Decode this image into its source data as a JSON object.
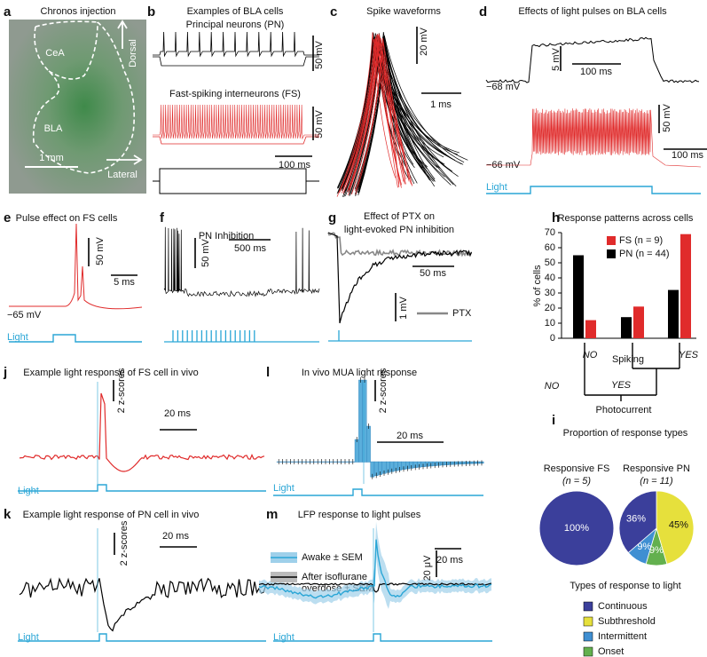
{
  "panels": {
    "a": {
      "label": "a",
      "title": "Chronos injection",
      "texts": [
        "CeA",
        "Dorsal",
        "BLA",
        "1 mm",
        "Lateral"
      ]
    },
    "b": {
      "label": "b",
      "title": "Examples of BLA cells",
      "texts": [
        "Principal neurons (PN)",
        "50 mV",
        "Fast-spiking interneurons (FS)",
        "50 mV",
        "100 ms"
      ]
    },
    "c": {
      "label": "c",
      "title": "Spike waveforms",
      "texts": [
        "20 mV",
        "1 ms"
      ]
    },
    "d": {
      "label": "d",
      "title": "Effects of light pulses on BLA cells",
      "texts": [
        "5 mV",
        "100 ms",
        "−68 mV",
        "50 mV",
        "100 ms",
        "−66 mV",
        "Light"
      ]
    },
    "e": {
      "label": "e",
      "title": "Pulse effect on FS cells",
      "texts": [
        "50 mV",
        "5 ms",
        "−65 mV",
        "Light"
      ]
    },
    "f": {
      "label": "f",
      "title": "PN Inhibition",
      "texts": [
        "50 mV",
        "500 ms"
      ]
    },
    "g": {
      "label": "g",
      "title": [
        "Effect of PTX on",
        "light-evoked PN inhibition"
      ],
      "texts": [
        "50 ms",
        "1 mV",
        "PTX"
      ]
    },
    "h": {
      "label": "h"
    },
    "i": {
      "label": "i",
      "title": "Proportion of response types",
      "legend_title": "Types of response to light",
      "legend": [
        {
          "name": "Continuous",
          "color": "#3b3f9b"
        },
        {
          "name": "Subthreshold",
          "color": "#e6e03c"
        },
        {
          "name": "Intermittent",
          "color": "#3f8fd2"
        },
        {
          "name": "Onset",
          "color": "#63b04e"
        }
      ]
    },
    "j": {
      "label": "j",
      "title": "Example light response of FS cell in vivo",
      "texts": [
        "2 z-scores",
        "20 ms",
        "Light"
      ]
    },
    "k": {
      "label": "k",
      "title": "Example light response of PN cell in vivo",
      "texts": [
        "2 z-scores",
        "20 ms",
        "Light"
      ]
    },
    "l": {
      "label": "l",
      "title": "In vivo MUA light response",
      "texts": [
        "2 z-scores",
        "20 ms",
        "Light"
      ]
    },
    "m": {
      "label": "m",
      "title": "LFP response to light pulses",
      "texts": [
        "Awake ± SEM",
        "After isoflurane",
        "overdose ± SEM",
        "20 μV",
        "20 ms",
        "Light"
      ]
    }
  },
  "chart_data": [
    {
      "type": "bar",
      "title": "Response patterns across cells",
      "ylabel": "% of cells",
      "categories": [
        null,
        null,
        null
      ],
      "series": [
        {
          "name": "FS (n = 9)",
          "color": "#e02b2b",
          "values": [
            12,
            21,
            69
          ]
        },
        {
          "name": "PN (n = 44)",
          "color": "#000000",
          "values": [
            55,
            14,
            32
          ]
        }
      ],
      "ylim": [
        0,
        70
      ],
      "yticks": [
        0,
        10,
        20,
        30,
        40,
        50,
        60,
        70
      ],
      "annotations": [
        "NO",
        "Spiking",
        "YES",
        "NO",
        "YES",
        "Photocurrent"
      ]
    },
    {
      "type": "pie",
      "title": "Responsive FS",
      "subtitle": "(n = 5)",
      "categories": [
        "Continuous"
      ],
      "values": [
        100
      ],
      "value_labels": [
        "100%"
      ],
      "colors": [
        "#3b3f9b"
      ]
    },
    {
      "type": "pie",
      "title": "Responsive PN",
      "subtitle": "(n = 11)",
      "categories": [
        "Subthreshold",
        "Onset",
        "Intermittent",
        "Continuous"
      ],
      "values": [
        45,
        9,
        9,
        36
      ],
      "value_labels": [
        "45%",
        "9%",
        "9%",
        "36%"
      ],
      "colors": [
        "#e6e03c",
        "#63b04e",
        "#3f8fd2",
        "#3b3f9b"
      ]
    }
  ]
}
